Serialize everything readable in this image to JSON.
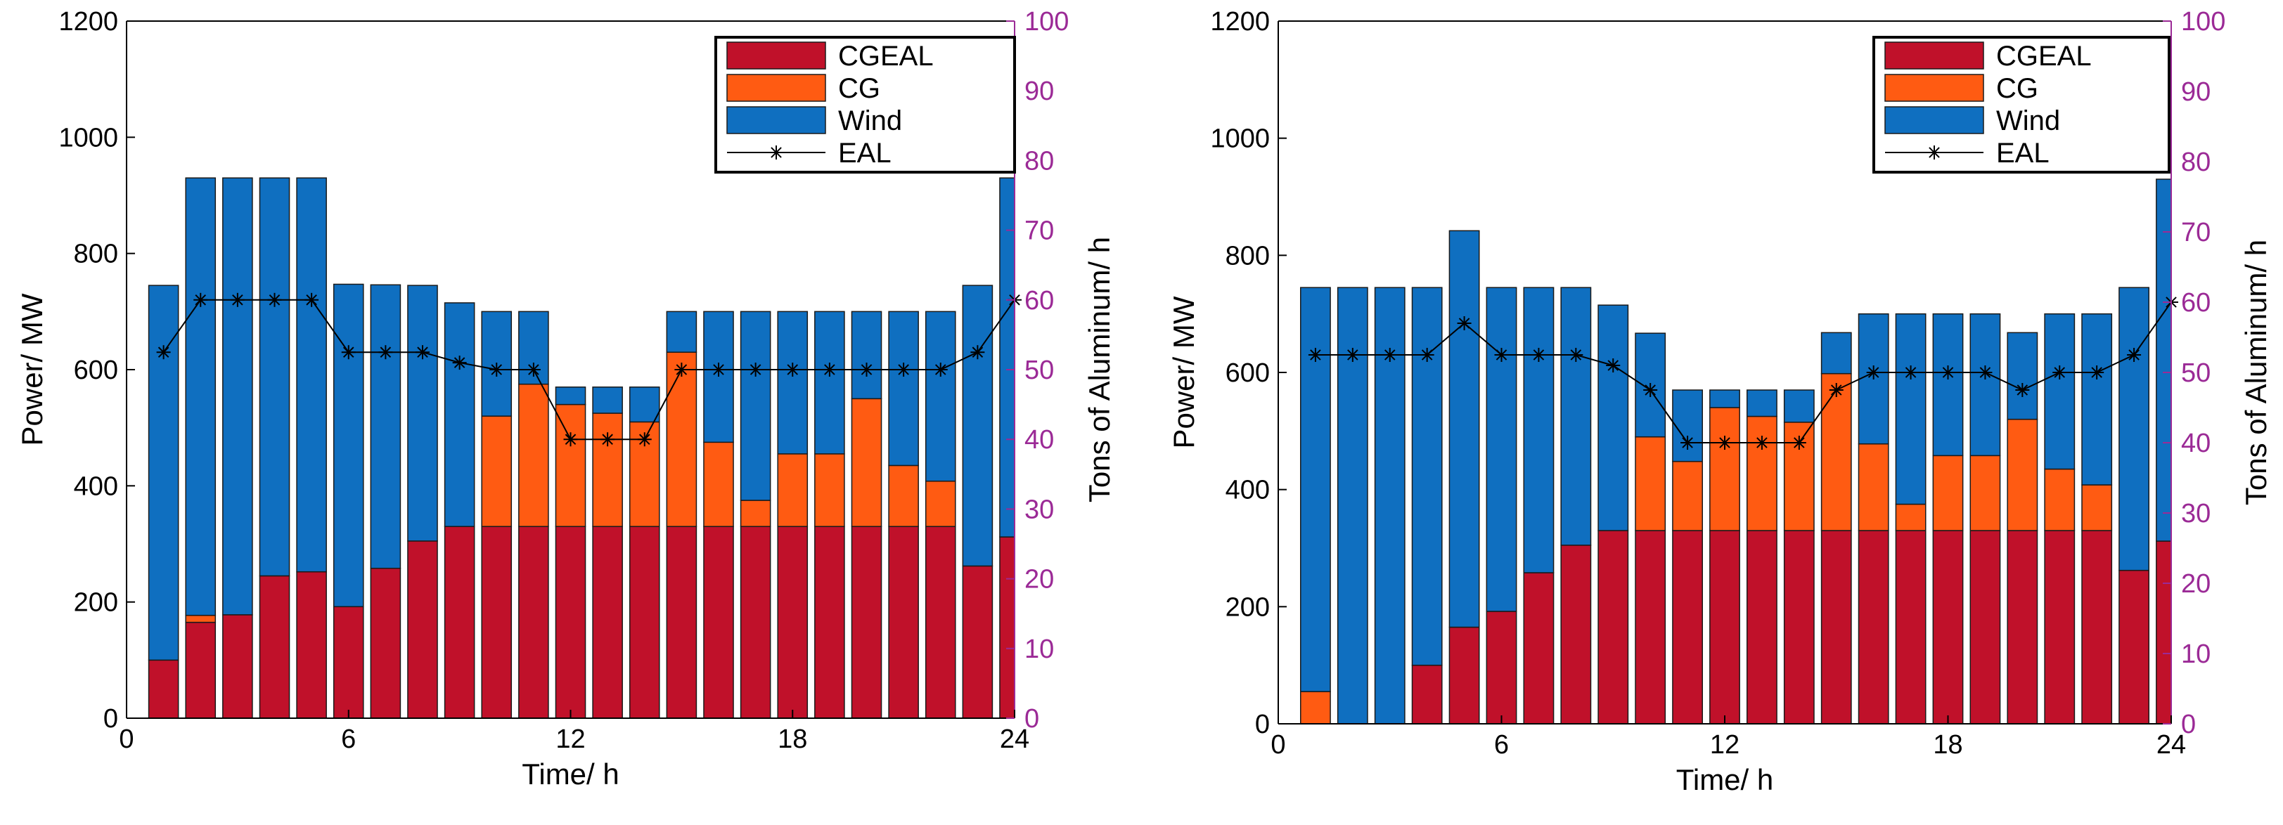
{
  "chart_data": [
    {
      "type": "bar",
      "stacked": true,
      "xlabel": "Time/ h",
      "ylabel": "Power/ MW",
      "y2label": "Tons of Aluminum/ h",
      "xlim": [
        0,
        24
      ],
      "ylim": [
        0,
        1200
      ],
      "y2lim": [
        0,
        100
      ],
      "x_ticks": [
        0,
        6,
        12,
        18,
        24
      ],
      "y_ticks": [
        0,
        200,
        400,
        600,
        800,
        1000,
        1200
      ],
      "y2_ticks": [
        0,
        10,
        20,
        30,
        40,
        50,
        60,
        70,
        80,
        90,
        100
      ],
      "legend_position": "top-right",
      "legend": [
        "CGEAL",
        "CG",
        "Wind",
        "EAL"
      ],
      "categories": [
        1,
        2,
        3,
        4,
        5,
        6,
        7,
        8,
        9,
        10,
        11,
        12,
        13,
        14,
        15,
        16,
        17,
        18,
        19,
        20,
        21,
        22,
        23,
        24
      ],
      "series": [
        {
          "name": "CGEAL",
          "color": "#c0112a",
          "values": [
            100,
            165,
            178,
            245,
            252,
            192,
            258,
            305,
            330,
            330,
            330,
            330,
            330,
            330,
            330,
            330,
            330,
            330,
            330,
            330,
            330,
            330,
            262,
            312
          ]
        },
        {
          "name": "CG",
          "color": "#ff5b12",
          "values": [
            0,
            12,
            0,
            0,
            0,
            0,
            0,
            0,
            0,
            190,
            245,
            210,
            195,
            180,
            300,
            145,
            45,
            125,
            125,
            220,
            105,
            78,
            0,
            0
          ]
        },
        {
          "name": "Wind",
          "color": "#0f6fc0",
          "values": [
            645,
            753,
            752,
            685,
            678,
            555,
            488,
            440,
            385,
            180,
            125,
            30,
            45,
            60,
            70,
            225,
            325,
            245,
            245,
            150,
            265,
            292,
            483,
            618
          ]
        },
        {
          "name": "EAL",
          "axis": "right",
          "color": "#000000",
          "marker": "*",
          "values": [
            52.5,
            60,
            60,
            60,
            60,
            52.5,
            52.5,
            52.5,
            51,
            50,
            50,
            40,
            40,
            40,
            50,
            50,
            50,
            50,
            50,
            50,
            50,
            50,
            52.5,
            60
          ]
        }
      ]
    },
    {
      "type": "bar",
      "stacked": true,
      "xlabel": "Time/ h",
      "ylabel": "Power/ MW",
      "y2label": "Tons of Aluminum/ h",
      "xlim": [
        0,
        24
      ],
      "ylim": [
        0,
        1200
      ],
      "y2lim": [
        0,
        100
      ],
      "x_ticks": [
        0,
        6,
        12,
        18,
        24
      ],
      "y_ticks": [
        0,
        200,
        400,
        600,
        800,
        1000,
        1200
      ],
      "y2_ticks": [
        0,
        10,
        20,
        30,
        40,
        50,
        60,
        70,
        80,
        90,
        100
      ],
      "legend_position": "top-right",
      "legend": [
        "CGEAL",
        "CG",
        "Wind",
        "EAL"
      ],
      "categories": [
        1,
        2,
        3,
        4,
        5,
        6,
        7,
        8,
        9,
        10,
        11,
        12,
        13,
        14,
        15,
        16,
        17,
        18,
        19,
        20,
        21,
        22,
        23,
        24
      ],
      "series": [
        {
          "name": "CGEAL",
          "color": "#c0112a",
          "values": [
            0,
            0,
            0,
            100,
            165,
            192,
            258,
            305,
            330,
            330,
            330,
            330,
            330,
            330,
            330,
            330,
            330,
            330,
            330,
            330,
            330,
            330,
            262,
            312
          ]
        },
        {
          "name": "CG",
          "color": "#ff5b12",
          "values": [
            55,
            0,
            0,
            0,
            0,
            0,
            0,
            0,
            0,
            160,
            118,
            210,
            195,
            185,
            268,
            148,
            45,
            128,
            128,
            190,
            105,
            78,
            0,
            0
          ]
        },
        {
          "name": "Wind",
          "color": "#0f6fc0",
          "values": [
            690,
            745,
            745,
            645,
            677,
            553,
            487,
            440,
            385,
            177,
            122,
            30,
            45,
            55,
            70,
            222,
            325,
            242,
            242,
            148,
            265,
            292,
            483,
            618
          ]
        },
        {
          "name": "EAL",
          "axis": "right",
          "color": "#000000",
          "marker": "*",
          "values": [
            52.5,
            52.5,
            52.5,
            52.5,
            57,
            52.5,
            52.5,
            52.5,
            51,
            47.5,
            40,
            40,
            40,
            40,
            47.5,
            50,
            50,
            50,
            50,
            47.5,
            50,
            50,
            52.5,
            60
          ]
        }
      ]
    }
  ]
}
